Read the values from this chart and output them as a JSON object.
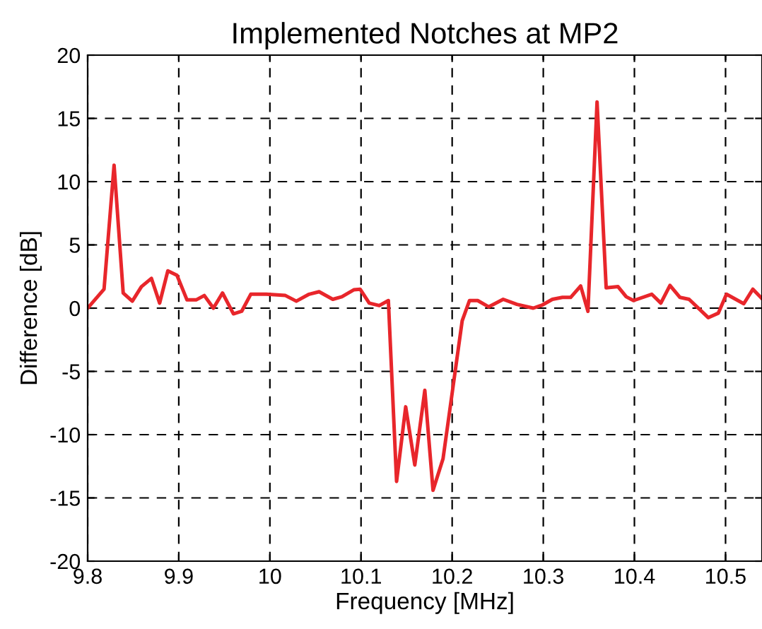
{
  "chart_data": {
    "type": "line",
    "title": "Implemented Notches at MP2",
    "xlabel": "Frequency [MHz]",
    "ylabel": "Difference [dB]",
    "xlim": [
      9.8,
      10.54
    ],
    "xticks": [
      9.8,
      9.9,
      10,
      10.1,
      10.2,
      10.3,
      10.4,
      10.5
    ],
    "ylim": [
      -20,
      20
    ],
    "yticks": [
      -20,
      -15,
      -10,
      -5,
      0,
      5,
      10,
      15,
      20
    ],
    "grid": true,
    "line_style": "solid",
    "marker": "none",
    "series": [
      {
        "color": "#e8262b",
        "x": [
          9.8,
          9.818,
          9.829,
          9.839,
          9.849,
          9.859,
          9.87,
          9.879,
          9.888,
          9.898,
          9.909,
          9.919,
          9.928,
          9.938,
          9.948,
          9.96,
          9.969,
          9.979,
          9.996,
          10.017,
          10.029,
          10.043,
          10.054,
          10.069,
          10.079,
          10.092,
          10.099,
          10.109,
          10.12,
          10.13,
          10.139,
          10.149,
          10.159,
          10.17,
          10.179,
          10.19,
          10.211,
          10.219,
          10.228,
          10.24,
          10.256,
          10.271,
          10.289,
          10.299,
          10.31,
          10.321,
          10.33,
          10.341,
          10.349,
          10.359,
          10.369,
          10.382,
          10.391,
          10.399,
          10.419,
          10.429,
          10.439,
          10.45,
          10.46,
          10.481,
          10.492,
          10.501,
          10.52,
          10.53,
          10.54
        ],
        "values": [
          0,
          1.5,
          11.3,
          1.2,
          0.55,
          1.7,
          2.35,
          0.4,
          2.95,
          2.6,
          0.65,
          0.65,
          1.0,
          0,
          1.2,
          -0.45,
          -0.25,
          1.1,
          1.1,
          1.0,
          0.55,
          1.1,
          1.3,
          0.7,
          0.9,
          1.45,
          1.5,
          0.4,
          0.2,
          0.6,
          -13.7,
          -7.8,
          -12.4,
          -6.5,
          -14.4,
          -11.9,
          -1.0,
          0.6,
          0.6,
          0.1,
          0.7,
          0.3,
          0,
          0.25,
          0.7,
          0.85,
          0.85,
          1.75,
          -0.25,
          16.3,
          1.6,
          1.7,
          0.9,
          0.6,
          1.1,
          0.4,
          1.8,
          0.85,
          0.7,
          -0.75,
          -0.4,
          1.1,
          0.35,
          1.5,
          0.75
        ]
      }
    ]
  }
}
